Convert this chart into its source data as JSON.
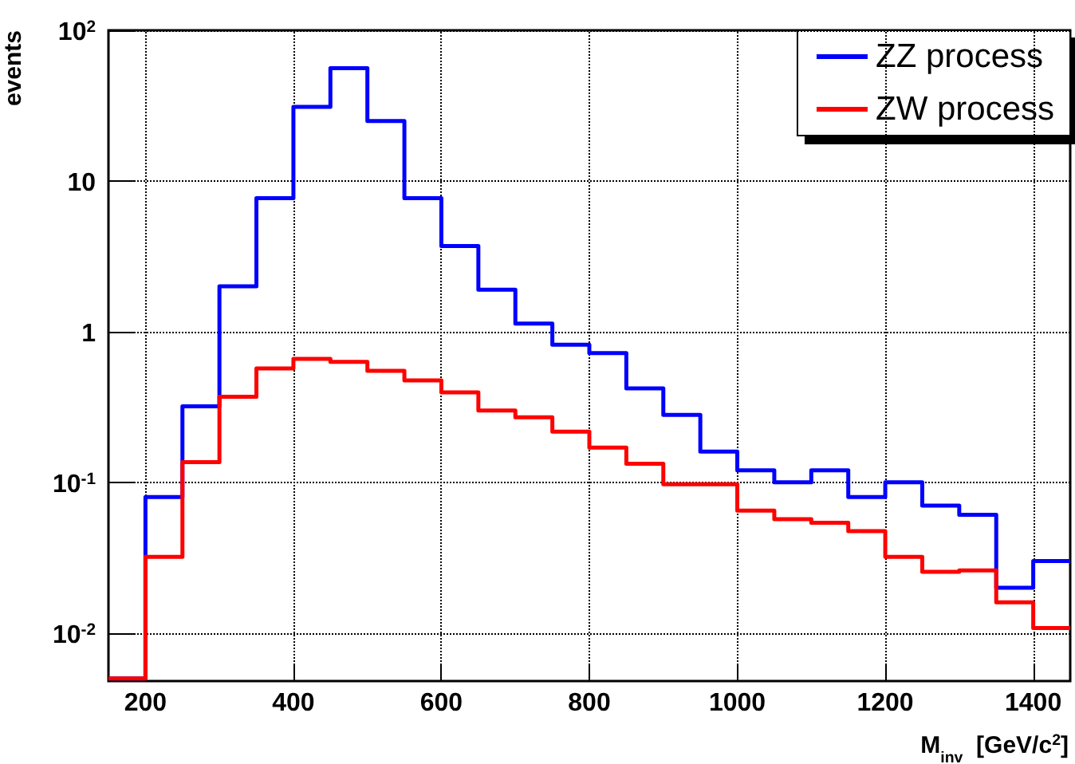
{
  "chart_data": {
    "type": "histogram",
    "xlabel": "M$_{inv}$  [GeV/c$^{2}$]",
    "ylabel": "events",
    "bins": [
      150,
      200,
      250,
      300,
      350,
      400,
      450,
      500,
      550,
      600,
      650,
      700,
      750,
      800,
      850,
      900,
      950,
      1000,
      1050,
      1100,
      1150,
      1200,
      1250,
      1300,
      1350,
      1400,
      1450
    ],
    "series": [
      {
        "name": "ZZ process",
        "color": "#0000ff",
        "values": [
          0.005,
          0.08,
          0.32,
          2.0,
          7.7,
          31,
          56,
          25,
          7.7,
          3.7,
          1.9,
          1.13,
          0.82,
          0.72,
          0.42,
          0.28,
          0.16,
          0.12,
          0.1,
          0.12,
          0.08,
          0.1,
          0.07,
          0.061,
          0.02,
          0.03
        ]
      },
      {
        "name": "ZW process",
        "color": "#ff0000",
        "values": [
          0.005,
          0.032,
          0.136,
          0.37,
          0.57,
          0.66,
          0.63,
          0.55,
          0.475,
          0.395,
          0.3,
          0.27,
          0.217,
          0.17,
          0.133,
          0.097,
          0.097,
          0.065,
          0.057,
          0.054,
          0.0475,
          0.032,
          0.0255,
          0.026,
          0.016,
          0.0108
        ]
      }
    ],
    "xlim": [
      150,
      1450
    ],
    "xticks": [
      200,
      400,
      600,
      800,
      1000,
      1200,
      1400
    ],
    "ylim": [
      0.0048,
      100
    ],
    "yticks": [
      {
        "value": 100,
        "label": "10$^{2}$"
      },
      10,
      1,
      {
        "value": 0.1,
        "label": "10$^{-1}$"
      },
      {
        "value": 0.01,
        "label": "10$^{-2}$"
      }
    ],
    "log": true,
    "grid": true,
    "legend": "top right"
  }
}
